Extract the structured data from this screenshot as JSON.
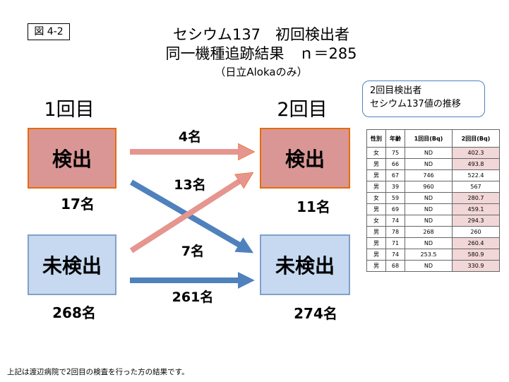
{
  "figure_label": "図 4-2",
  "title": {
    "line1": "セシウム137　初回検出者",
    "line2": "同一機種追跡結果　ｎ＝285",
    "subtitle": "（日立Alokaのみ）"
  },
  "columns": {
    "first": "1回目",
    "second": "2回目"
  },
  "boxes": {
    "first_detected": {
      "label": "検出",
      "count": "17名"
    },
    "first_undetected": {
      "label": "未検出",
      "count": "268名"
    },
    "second_detected": {
      "label": "検出",
      "count": "11名"
    },
    "second_undetected": {
      "label": "未検出",
      "count": "274名"
    }
  },
  "arrows": {
    "det_to_det": "4名",
    "det_to_undet": "13名",
    "undet_to_det": "7名",
    "undet_to_undet": "261名"
  },
  "colors": {
    "detected_fill": "#d99694",
    "undetected_fill": "#c6d9f1",
    "red_arrow": "#e6958f",
    "blue_arrow": "#4f81bd"
  },
  "callout": {
    "line1": "2回目検出者",
    "line2": "セシウム137値の推移"
  },
  "table": {
    "headers": [
      "性別",
      "年齢",
      "1回目(Bq)",
      "2回目(Bq)"
    ],
    "rows": [
      [
        "女",
        "75",
        "ND",
        "402.3"
      ],
      [
        "男",
        "66",
        "ND",
        "493.8"
      ],
      [
        "男",
        "67",
        "746",
        "522.4"
      ],
      [
        "男",
        "39",
        "960",
        "567"
      ],
      [
        "女",
        "59",
        "ND",
        "280.7"
      ],
      [
        "男",
        "69",
        "ND",
        "459.1"
      ],
      [
        "女",
        "74",
        "ND",
        "294.3"
      ],
      [
        "男",
        "78",
        "268",
        "260"
      ],
      [
        "男",
        "71",
        "ND",
        "260.4"
      ],
      [
        "男",
        "74",
        "253.5",
        "580.9"
      ],
      [
        "男",
        "68",
        "ND",
        "330.9"
      ]
    ],
    "highlight_rows": [
      0,
      1,
      4,
      5,
      6,
      8,
      9,
      10
    ]
  },
  "footnote": "上記は渡辺病院で2回目の検査を行った方の結果です。"
}
